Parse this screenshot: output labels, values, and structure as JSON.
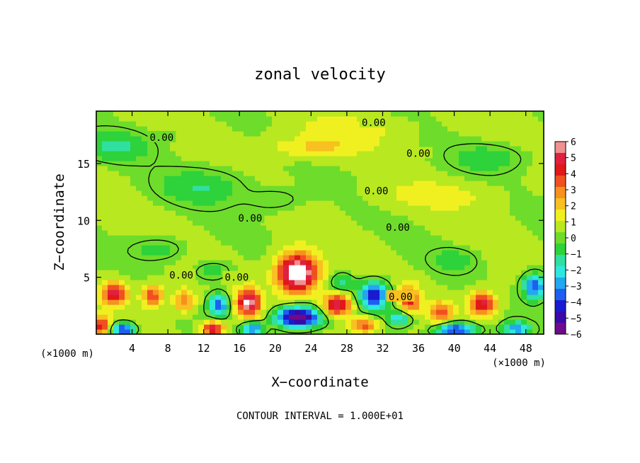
{
  "chart_data": {
    "type": "heatmap",
    "title": "zonal velocity",
    "xlabel": "X−coordinate",
    "ylabel": "Z−coordinate",
    "x_unit_left": "(×1000 m)",
    "x_unit_right": "(×1000 m)",
    "footer": "CONTOUR INTERVAL = 1.000E+01",
    "xlim": [
      0,
      50
    ],
    "ylim": [
      0,
      19.6
    ],
    "x_ticks": [
      4,
      8,
      12,
      16,
      20,
      24,
      28,
      32,
      36,
      40,
      44,
      48
    ],
    "y_ticks": [
      5,
      10,
      15
    ],
    "colorbar": {
      "min": -6,
      "max": 6,
      "ticks": [
        "6",
        "5",
        "4",
        "3",
        "2",
        "1",
        "0",
        "−1",
        "−2",
        "−3",
        "−4",
        "−5",
        "−6"
      ],
      "colors": [
        "#6e0a8c",
        "#3a0aa8",
        "#1a1ad0",
        "#1f5ff0",
        "#22a8f0",
        "#2ee8e0",
        "#2fe0a0",
        "#2ed23a",
        "#6edc2a",
        "#b8e820",
        "#f0f020",
        "#f8c020",
        "#f89020",
        "#f05020",
        "#e01818",
        "#e02040",
        "#f09090"
      ]
    },
    "contour_labels": [
      {
        "text": "0.00",
        "x": 7.3,
        "z": 17.3
      },
      {
        "text": "0.00",
        "x": 31.0,
        "z": 18.6
      },
      {
        "text": "0.00",
        "x": 36.0,
        "z": 15.9
      },
      {
        "text": "0.00",
        "x": 31.3,
        "z": 12.6
      },
      {
        "text": "0.00",
        "x": 17.2,
        "z": 10.2
      },
      {
        "text": "0.00",
        "x": 33.7,
        "z": 9.4
      },
      {
        "text": "0.00",
        "x": 9.5,
        "z": 5.2
      },
      {
        "text": "0.00",
        "x": 15.7,
        "z": 5.0
      },
      {
        "text": "0.00",
        "x": 34.0,
        "z": 3.3
      }
    ],
    "features": [
      {
        "sign": "positive",
        "x": 22.5,
        "z": 5.4,
        "amp": 7.0,
        "sx": 2.2,
        "sz": 1.7
      },
      {
        "sign": "negative",
        "x": 22.5,
        "z": 1.5,
        "amp": -7.0,
        "sx": 2.4,
        "sz": 0.9
      },
      {
        "sign": "positive",
        "x": 17.0,
        "z": 2.8,
        "amp": 5.5,
        "sx": 1.3,
        "sz": 1.2
      },
      {
        "sign": "positive",
        "x": 27.0,
        "z": 2.6,
        "amp": 5.0,
        "sx": 1.6,
        "sz": 1.0
      },
      {
        "sign": "negative",
        "x": 31.0,
        "z": 3.4,
        "amp": -5.0,
        "sx": 1.7,
        "sz": 1.2
      },
      {
        "sign": "positive",
        "x": 2.0,
        "z": 3.6,
        "amp": 4.5,
        "sx": 1.4,
        "sz": 1.0
      },
      {
        "sign": "positive",
        "x": 6.3,
        "z": 3.4,
        "amp": 3.5,
        "sx": 1.2,
        "sz": 1.0
      },
      {
        "sign": "positive",
        "x": 9.8,
        "z": 3.0,
        "amp": 3.0,
        "sx": 1.2,
        "sz": 1.0
      },
      {
        "sign": "negative",
        "x": 13.7,
        "z": 2.6,
        "amp": -4.0,
        "sx": 1.1,
        "sz": 1.0
      },
      {
        "sign": "positive",
        "x": 35.0,
        "z": 3.0,
        "amp": 3.5,
        "sx": 1.2,
        "sz": 1.3
      },
      {
        "sign": "positive",
        "x": 38.5,
        "z": 2.0,
        "amp": 3.0,
        "sx": 1.4,
        "sz": 0.9
      },
      {
        "sign": "positive",
        "x": 43.2,
        "z": 2.7,
        "amp": 4.5,
        "sx": 1.5,
        "sz": 1.1
      },
      {
        "sign": "negative",
        "x": 40.2,
        "z": 0.4,
        "amp": -5.0,
        "sx": 2.2,
        "sz": 0.6
      },
      {
        "sign": "negative",
        "x": 49.0,
        "z": 4.2,
        "amp": -4.5,
        "sx": 1.3,
        "sz": 1.1
      },
      {
        "sign": "negative",
        "x": 47.0,
        "z": 0.5,
        "amp": -3.5,
        "sx": 1.5,
        "sz": 0.6
      },
      {
        "sign": "negative",
        "x": 3.0,
        "z": 0.4,
        "amp": -5.0,
        "sx": 1.2,
        "sz": 0.6
      },
      {
        "sign": "positive",
        "x": 0.6,
        "z": 0.8,
        "amp": 4.0,
        "sx": 0.8,
        "sz": 0.8
      },
      {
        "sign": "positive",
        "x": 13.0,
        "z": 0.5,
        "amp": 5.0,
        "sx": 1.2,
        "sz": 0.6
      },
      {
        "sign": "negative",
        "x": 17.5,
        "z": 0.5,
        "amp": -4.0,
        "sx": 1.2,
        "sz": 0.6
      },
      {
        "sign": "positive",
        "x": 30.0,
        "z": 0.8,
        "amp": 3.5,
        "sx": 1.5,
        "sz": 0.7
      },
      {
        "sign": "negative",
        "x": 34.0,
        "z": 1.5,
        "amp": -3.0,
        "sx": 1.5,
        "sz": 0.7
      },
      {
        "sign": "negative",
        "x": 27.5,
        "z": 4.5,
        "amp": -2.0,
        "sx": 1.2,
        "sz": 0.8
      },
      {
        "sign": "negative",
        "x": 2.0,
        "z": 16.5,
        "amp": -1.6,
        "sx": 4.0,
        "sz": 1.3
      },
      {
        "sign": "negative",
        "x": 12.0,
        "z": 13.0,
        "amp": -1.4,
        "sx": 5.0,
        "sz": 1.6
      },
      {
        "sign": "negative",
        "x": 7.0,
        "z": 7.5,
        "amp": -1.2,
        "sx": 3.0,
        "sz": 1.0
      },
      {
        "sign": "negative",
        "x": 13.0,
        "z": 5.5,
        "amp": -1.5,
        "sx": 2.0,
        "sz": 0.8
      },
      {
        "sign": "positive",
        "x": 24.0,
        "z": 16.4,
        "amp": 1.5,
        "sx": 5.0,
        "sz": 0.9
      },
      {
        "sign": "positive",
        "x": 28.0,
        "z": 18.0,
        "amp": 1.0,
        "sx": 6.0,
        "sz": 1.2
      },
      {
        "sign": "negative",
        "x": 44.0,
        "z": 15.5,
        "amp": -1.3,
        "sx": 4.0,
        "sz": 1.2
      },
      {
        "sign": "negative",
        "x": 20.0,
        "z": 11.8,
        "amp": -1.0,
        "sx": 3.0,
        "sz": 1.0
      },
      {
        "sign": "negative",
        "x": 40.0,
        "z": 6.5,
        "amp": -1.2,
        "sx": 2.5,
        "sz": 1.0
      },
      {
        "sign": "positive",
        "x": 38.0,
        "z": 12.2,
        "amp": 1.0,
        "sx": 6.0,
        "sz": 1.2
      }
    ]
  }
}
